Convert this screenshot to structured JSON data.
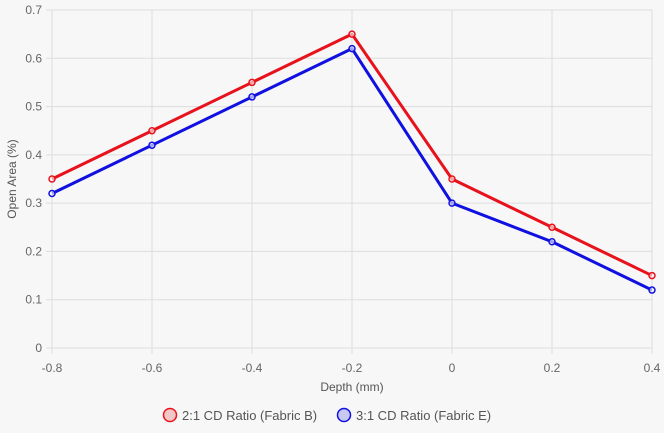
{
  "chart_data": {
    "type": "line",
    "title": "",
    "xlabel": "Depth (mm)",
    "ylabel": "Open Area (%)",
    "xlim": [
      -0.8,
      0.4
    ],
    "ylim": [
      0,
      0.7
    ],
    "x_ticks": [
      "-0.8",
      "-0.6",
      "-0.4",
      "-0.2",
      "0",
      "0.2",
      "0.4"
    ],
    "y_ticks": [
      "0",
      "0.1",
      "0.2",
      "0.3",
      "0.4",
      "0.5",
      "0.6",
      "0.7"
    ],
    "grid": true,
    "legend_position": "bottom",
    "x": [
      -0.8,
      -0.6,
      -0.4,
      -0.2,
      0,
      0.2,
      0.4
    ],
    "series": [
      {
        "name": "2:1 CD Ratio (Fabric B)",
        "color": "#e8121c",
        "values": [
          0.35,
          0.45,
          0.55,
          0.65,
          0.35,
          0.25,
          0.15
        ]
      },
      {
        "name": "3:1 CD Ratio (Fabric E)",
        "color": "#1010e0",
        "values": [
          0.32,
          0.42,
          0.52,
          0.62,
          0.3,
          0.22,
          0.12
        ]
      }
    ]
  }
}
